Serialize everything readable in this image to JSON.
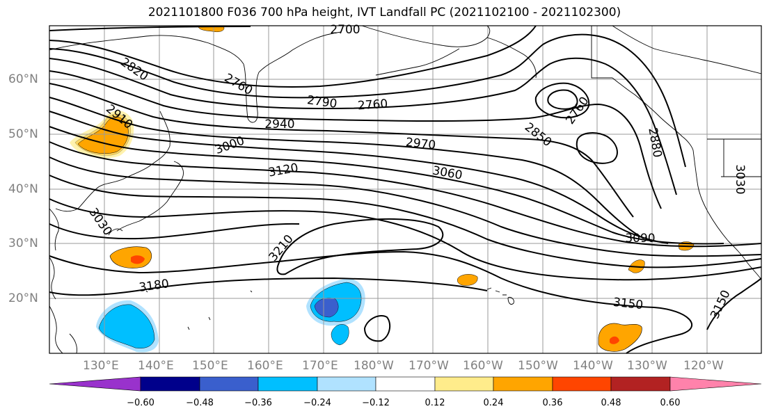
{
  "title": "2021101800 F036 700 hPa height, IVT Landfall PC (2021102100 - 2021102300)",
  "map": {
    "lat_labels": [
      "60°N",
      "50°N",
      "40°N",
      "30°N",
      "20°N"
    ],
    "lon_labels": [
      "130°E",
      "140°E",
      "150°E",
      "160°E",
      "170°E",
      "180°W",
      "170°W",
      "160°W",
      "150°W",
      "140°W",
      "130°W",
      "120°W"
    ],
    "contour_labels": [
      "2700",
      "2820",
      "2760",
      "2910",
      "2790",
      "2760",
      "2760",
      "2940",
      "2850",
      "2880",
      "3000",
      "2970",
      "3060",
      "3120",
      "3030",
      "3030",
      "3090",
      "3210",
      "3180",
      "3150",
      "3150"
    ],
    "line_color": "#000000",
    "coast_color": "#000000",
    "grid_color": "#9a9a9a"
  },
  "colorbar": {
    "tick_labels": [
      "−0.60",
      "−0.48",
      "−0.36",
      "−0.24",
      "−0.12",
      "0.12",
      "0.24",
      "0.36",
      "0.48",
      "0.60"
    ],
    "colors": [
      "#9932cc",
      "#00008b",
      "#3a5fcd",
      "#00bfff",
      "#b0e2ff",
      "#ffffff",
      "#ffec8b",
      "#ffa500",
      "#ff4500",
      "#b22222",
      "#ff82ab"
    ]
  }
}
